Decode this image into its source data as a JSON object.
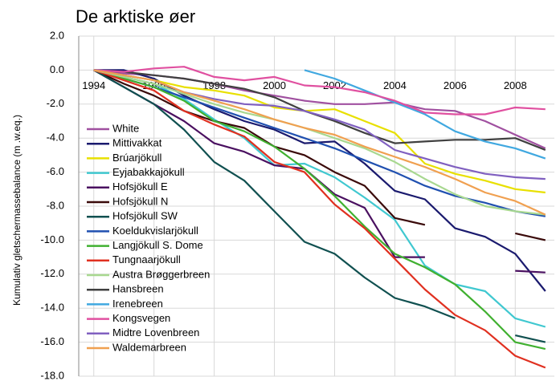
{
  "chart_data": {
    "type": "line",
    "title": "De arktiske øer",
    "y_label": "Kumulativ gletschermassebalance (m .w.eq.)",
    "x": [
      1994,
      1995,
      1996,
      1997,
      1998,
      1999,
      2000,
      2001,
      2002,
      2003,
      2004,
      2005,
      2006,
      2007,
      2008,
      2009
    ],
    "xlim": [
      1993.5,
      2009.3
    ],
    "xticks": [
      1994,
      1996,
      1998,
      2000,
      2002,
      2004,
      2006,
      2008
    ],
    "ylim": [
      -18,
      2
    ],
    "yticks": [
      {
        "value": 2,
        "label": "2.0"
      },
      {
        "value": 0,
        "label": "0.0"
      },
      {
        "value": -2,
        "label": "-2.0"
      },
      {
        "value": -4,
        "label": "-4.0"
      },
      {
        "value": -6,
        "label": "-6.0"
      },
      {
        "value": -8,
        "label": "-8.0"
      },
      {
        "value": -10,
        "label": "-10.0"
      },
      {
        "value": -12,
        "label": "-12.0"
      },
      {
        "value": -14,
        "label": "-14.0"
      },
      {
        "value": -16,
        "label": "-16.0"
      },
      {
        "value": -18,
        "label": "-18.0"
      }
    ],
    "grid": true,
    "legend": "left",
    "series": [
      {
        "name": "White",
        "color": "#a050a0",
        "values": [
          0,
          -0.2,
          -0.3,
          -0.5,
          -0.8,
          -1.2,
          -1.5,
          -1.8,
          -2.0,
          -2.0,
          -1.9,
          -2.3,
          -2.4,
          -3.0,
          -3.8,
          -4.6
        ]
      },
      {
        "name": "Mittivakkat",
        "color": "#1a1a6e",
        "values": [
          0,
          0,
          -0.5,
          -1.5,
          -2.3,
          -3.0,
          -3.5,
          -4.3,
          -4.2,
          -5.5,
          -7.1,
          -7.6,
          -9.3,
          -9.8,
          -10.8,
          -13.0
        ]
      },
      {
        "name": "Brúarjökull",
        "color": "#e8e000",
        "values": [
          0,
          -0.3,
          -0.6,
          -1.0,
          -1.2,
          -1.5,
          -2.2,
          -2.4,
          -2.3,
          -3.0,
          -3.7,
          -5.5,
          -6.1,
          -6.5,
          -7.0,
          -7.2
        ]
      },
      {
        "name": "Eyjabakkajökull",
        "color": "#40c8d0",
        "values": [
          0,
          -0.4,
          -0.8,
          -1.7,
          -2.9,
          -4.0,
          -5.6,
          -5.5,
          -6.3,
          -7.5,
          -8.8,
          -11.5,
          -12.6,
          -13.0,
          -14.6,
          -15.1
        ]
      },
      {
        "name": "Hofsjökull E",
        "color": "#4a1060",
        "values": [
          0,
          -1.0,
          -2.0,
          -3.0,
          -4.3,
          -4.8,
          -5.6,
          -5.8,
          -7.3,
          -8.1,
          -11.0,
          -11.0,
          null,
          null,
          -11.8,
          -11.9
        ]
      },
      {
        "name": "Hofsjökull N",
        "color": "#3a0a0a",
        "values": [
          0,
          -0.8,
          -1.5,
          -2.4,
          -3.0,
          -3.4,
          -4.5,
          -5.0,
          -6.0,
          -6.8,
          -8.7,
          -9.1,
          null,
          null,
          -9.6,
          -10.0
        ]
      },
      {
        "name": "Hofsjökull SW",
        "color": "#105050",
        "values": [
          0,
          -1.0,
          -2.0,
          -3.5,
          -5.4,
          -6.5,
          -8.3,
          -10.1,
          -10.8,
          -12.2,
          -13.4,
          -13.9,
          -14.6,
          null,
          -15.6,
          -16.0
        ]
      },
      {
        "name": "Koeldukvislarjökull",
        "color": "#2050b0",
        "values": [
          0,
          -0.5,
          -1.0,
          -1.6,
          -2.2,
          -2.8,
          -3.4,
          -4.0,
          -4.6,
          -5.3,
          -6.0,
          -6.8,
          -7.4,
          -7.8,
          -8.3,
          -8.6
        ]
      },
      {
        "name": "Langjökull S. Dome",
        "color": "#40b030",
        "values": [
          0,
          -0.5,
          -1.0,
          -1.8,
          -3.0,
          -3.6,
          -4.5,
          -5.8,
          -7.4,
          -9.2,
          -10.8,
          -11.6,
          -12.6,
          -14.2,
          -16.0,
          -16.4
        ]
      },
      {
        "name": "Tungnaarjökull",
        "color": "#e03020",
        "values": [
          0,
          -0.6,
          -1.2,
          -2.4,
          -3.2,
          -3.9,
          -5.4,
          -6.0,
          -7.9,
          -9.3,
          -11.1,
          -12.9,
          -14.4,
          -15.3,
          -16.8,
          -17.5
        ]
      },
      {
        "name": "Austra Brøggerbreen",
        "color": "#a8d890",
        "values": [
          0,
          -0.4,
          -0.8,
          -1.4,
          -2.0,
          -2.5,
          -2.9,
          -3.4,
          -4.0,
          -4.6,
          -5.4,
          -6.4,
          -7.3,
          -8.0,
          -8.3,
          -8.5
        ]
      },
      {
        "name": "Hansbreen",
        "color": "#404040",
        "values": [
          0,
          -0.1,
          -0.3,
          -0.5,
          -0.8,
          -1.1,
          -1.6,
          -2.4,
          -3.0,
          -3.7,
          -4.3,
          -4.2,
          -4.1,
          -4.1,
          -4.0,
          -4.7
        ]
      },
      {
        "name": "Irenebreen",
        "color": "#40a8e0",
        "values": [
          null,
          null,
          null,
          null,
          null,
          null,
          null,
          0,
          -0.5,
          -1.2,
          -1.9,
          -2.6,
          -3.6,
          -4.2,
          -4.6,
          -5.2
        ]
      },
      {
        "name": "Kongsvegen",
        "color": "#e050a0",
        "values": [
          0,
          -0.1,
          0.1,
          0.2,
          -0.4,
          -0.6,
          -0.4,
          -0.9,
          -1.0,
          -1.3,
          -1.8,
          -2.5,
          -2.6,
          -2.6,
          -2.2,
          -2.3
        ]
      },
      {
        "name": "Midtre Lovenbreen",
        "color": "#8060c0",
        "values": [
          0,
          -0.3,
          -0.6,
          -1.3,
          -1.7,
          -2.0,
          -2.1,
          -2.4,
          -2.9,
          -3.5,
          -4.7,
          -5.2,
          -5.7,
          -6.1,
          -6.3,
          -6.4
        ]
      },
      {
        "name": "Waldemarbreen",
        "color": "#f0a050",
        "values": [
          0,
          -0.3,
          -0.6,
          -1.3,
          -1.8,
          -2.3,
          -2.9,
          -3.4,
          -3.8,
          -4.5,
          -5.1,
          -5.7,
          -6.4,
          -7.2,
          -7.7,
          -8.5
        ]
      }
    ]
  }
}
